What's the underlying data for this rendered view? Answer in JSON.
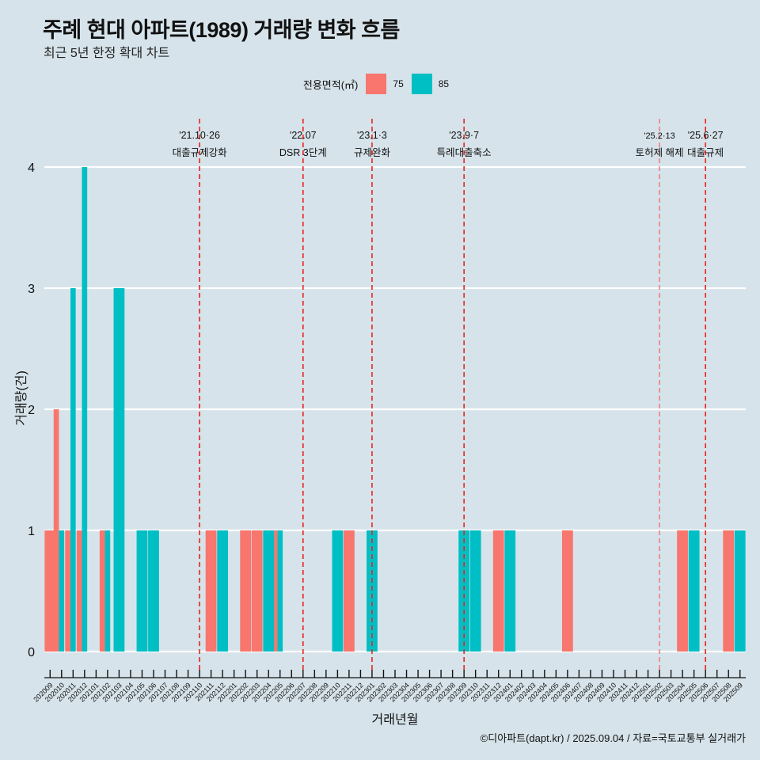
{
  "title": "주례 현대 아파트(1989) 거래량 변화 흐름",
  "subtitle": "최근 5년 한정 확대 차트",
  "caption": "©디아파트(dapt.kr) / 2025.09.04 / 자료=국토교통부 실거래가",
  "legend": {
    "title": "전용면적(㎡)",
    "items": [
      {
        "label": "75",
        "color": "#f8766d"
      },
      {
        "label": "85",
        "color": "#00bfc4"
      }
    ]
  },
  "chart_data": {
    "type": "bar",
    "xlabel": "거래년월",
    "ylabel": "거래량(건)",
    "ylim": [
      0,
      4
    ],
    "yticks": [
      0,
      1,
      2,
      3,
      4
    ],
    "grid": "horizontal",
    "legend_position": "top",
    "categories": [
      "202009",
      "202010",
      "202011",
      "202012",
      "202101",
      "202102",
      "202103",
      "202104",
      "202105",
      "202106",
      "202107",
      "202108",
      "202109",
      "202110",
      "202111",
      "202112",
      "202201",
      "202202",
      "202203",
      "202204",
      "202205",
      "202206",
      "202207",
      "202208",
      "202209",
      "202210",
      "202211",
      "202212",
      "202301",
      "202302",
      "202303",
      "202304",
      "202305",
      "202306",
      "202307",
      "202308",
      "202309",
      "202310",
      "202311",
      "202312",
      "202401",
      "202402",
      "202403",
      "202404",
      "202405",
      "202406",
      "202407",
      "202408",
      "202409",
      "202410",
      "202411",
      "202412",
      "202501",
      "202502",
      "202503",
      "202504",
      "202505",
      "202506",
      "202507",
      "202508",
      "202509"
    ],
    "series": [
      {
        "name": "75",
        "color": "#f8766d",
        "values": [
          1,
          2,
          1,
          1,
          0,
          1,
          0,
          0,
          0,
          0,
          0,
          0,
          0,
          0,
          1,
          0,
          0,
          1,
          1,
          0,
          1,
          0,
          0,
          0,
          0,
          0,
          1,
          0,
          0,
          0,
          0,
          0,
          0,
          0,
          0,
          0,
          0,
          0,
          0,
          1,
          0,
          0,
          0,
          0,
          0,
          1,
          0,
          0,
          0,
          0,
          0,
          0,
          0,
          0,
          0,
          1,
          0,
          0,
          0,
          1,
          0
        ]
      },
      {
        "name": "85",
        "color": "#00bfc4",
        "values": [
          0,
          1,
          3,
          4,
          0,
          1,
          3,
          0,
          1,
          1,
          0,
          0,
          0,
          0,
          0,
          1,
          0,
          0,
          0,
          1,
          1,
          0,
          0,
          0,
          0,
          1,
          0,
          0,
          1,
          0,
          0,
          0,
          0,
          0,
          0,
          0,
          1,
          1,
          0,
          0,
          1,
          0,
          0,
          0,
          0,
          0,
          0,
          0,
          0,
          0,
          0,
          0,
          0,
          0,
          0,
          0,
          1,
          0,
          0,
          0,
          1
        ]
      }
    ],
    "annotations": [
      {
        "category": "202110",
        "date": "'21.10·26",
        "label": "대출규제강화",
        "color": "#e8231f"
      },
      {
        "category": "202207",
        "date": "'22.07",
        "label": "DSR 3단계",
        "color": "#e8231f"
      },
      {
        "category": "202301",
        "date": "'23.1·3",
        "label": "규제완화",
        "color": "#e8231f"
      },
      {
        "category": "202309",
        "date": "'23.9·7",
        "label": "특례대출축소",
        "color": "#e8231f"
      },
      {
        "category": "202502",
        "date": "'25.2·13",
        "label": "토허제 해제",
        "color": "#f08080"
      },
      {
        "category": "202506",
        "date": "'25.6·27",
        "label": "대출규제",
        "color": "#e8231f"
      }
    ]
  }
}
